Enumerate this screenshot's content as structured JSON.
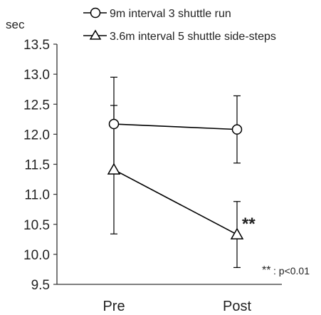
{
  "chart_data": {
    "type": "line",
    "ylabel": "sec",
    "ylim": [
      9.5,
      13.5
    ],
    "yticks": [
      "9.5",
      "10.0",
      "10.5",
      "11.0",
      "11.5",
      "12.0",
      "12.5",
      "13.0",
      "13.5"
    ],
    "categories": [
      "Pre",
      "Post"
    ],
    "series": [
      {
        "name": "9m interval 3 shuttle run",
        "marker": "circle",
        "values": [
          12.17,
          12.08
        ],
        "errors": [
          0.78,
          0.56
        ]
      },
      {
        "name": "3.6m interval 5 shuttle side-steps",
        "marker": "triangle",
        "values": [
          11.41,
          10.33
        ],
        "errors": [
          1.07,
          0.55
        ]
      }
    ],
    "annotations": {
      "significance_mark": "**",
      "note_stars": "**",
      "note_text": ": p<0.01"
    },
    "legend_position": "top",
    "grid": false,
    "line_color": "#000000"
  }
}
